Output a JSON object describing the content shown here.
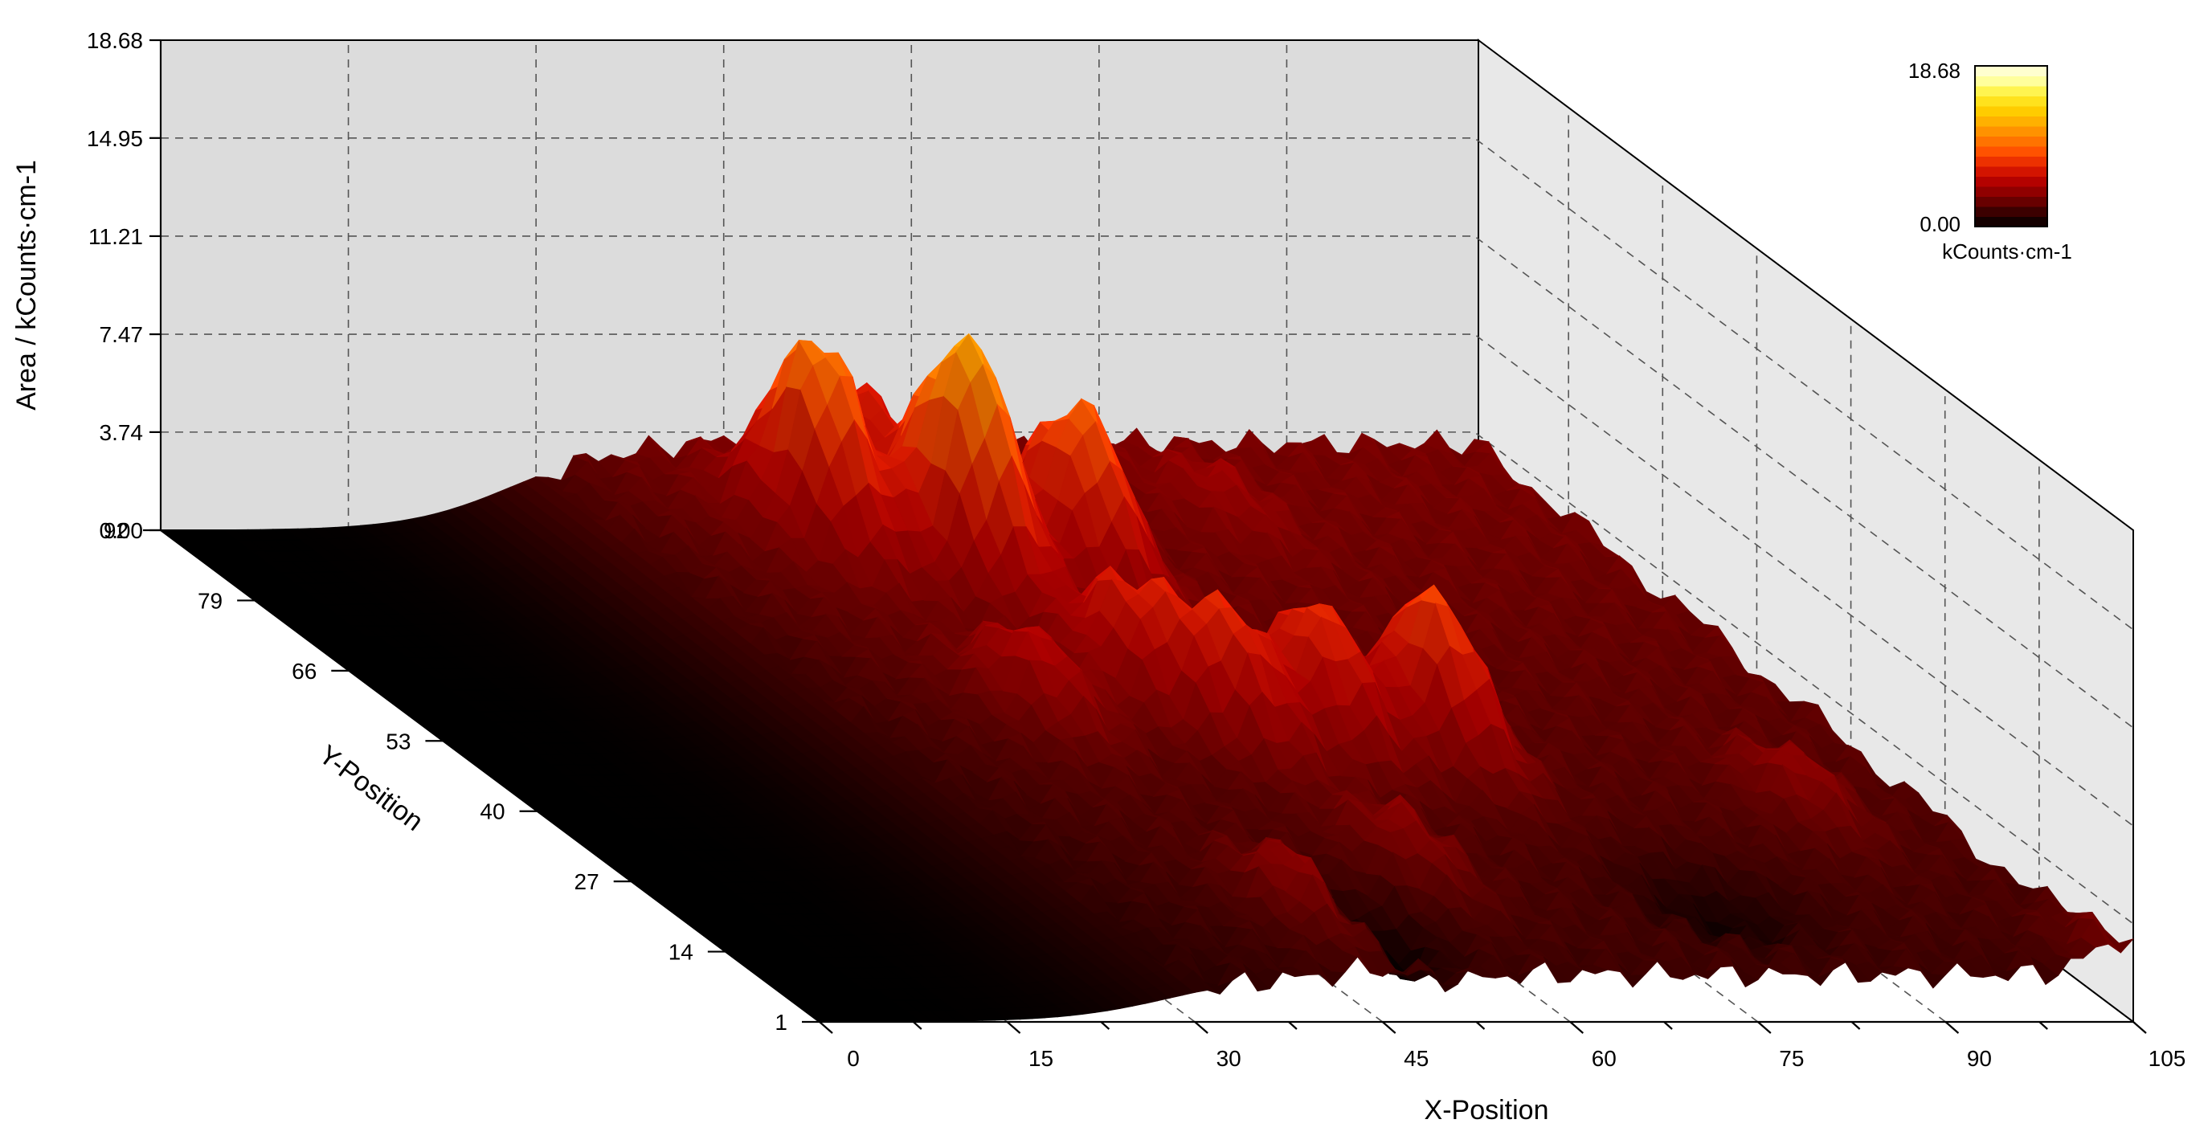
{
  "chart_data": {
    "type": "surface-3d",
    "title": "",
    "xlabel": "X-Position",
    "ylabel": "Y-Position",
    "zlabel": "Area / kCounts·cm-1",
    "x_ticks": [
      "0",
      "15",
      "30",
      "45",
      "60",
      "75",
      "90",
      "105"
    ],
    "y_ticks": [
      "1",
      "14",
      "27",
      "40",
      "53",
      "66",
      "79",
      "92"
    ],
    "z_ticks": [
      "0.00",
      "3.74",
      "7.47",
      "11.21",
      "14.95",
      "18.68"
    ],
    "xlim": [
      0,
      105
    ],
    "ylim": [
      1,
      92
    ],
    "zlim": [
      0,
      18.68
    ],
    "grid": true,
    "colormap": [
      "#000000",
      "#3a0000",
      "#7a0000",
      "#b00000",
      "#dd1a00",
      "#ff4a00",
      "#ff7a00",
      "#ffa800",
      "#ffd000",
      "#ffef30",
      "#ffffa0",
      "#ffffe8"
    ],
    "colorbar": {
      "min_label": "0.00",
      "max_label": "18.68",
      "unit_label": "kCounts·cm-1",
      "position": "top-right"
    },
    "peaks": [
      {
        "x": 52,
        "y": 70,
        "z": 11.0
      },
      {
        "x": 61,
        "y": 70,
        "z": 8.5
      },
      {
        "x": 44,
        "y": 77,
        "z": 9.5
      },
      {
        "x": 52,
        "y": 86,
        "z": 5.5
      },
      {
        "x": 72,
        "y": 40,
        "z": 8.0
      },
      {
        "x": 64,
        "y": 42,
        "z": 7.0
      },
      {
        "x": 57,
        "y": 42,
        "z": 6.5
      },
      {
        "x": 53,
        "y": 50,
        "z": 6.0
      },
      {
        "x": 44,
        "y": 47,
        "z": 5.0
      },
      {
        "x": 45,
        "y": 12,
        "z": 4.5
      },
      {
        "x": 58,
        "y": 20,
        "z": 4.0
      },
      {
        "x": 95,
        "y": 30,
        "z": 4.0
      },
      {
        "x": 104,
        "y": 2,
        "z": 3.5
      },
      {
        "x": 78,
        "y": 80,
        "z": 3.5
      }
    ]
  }
}
